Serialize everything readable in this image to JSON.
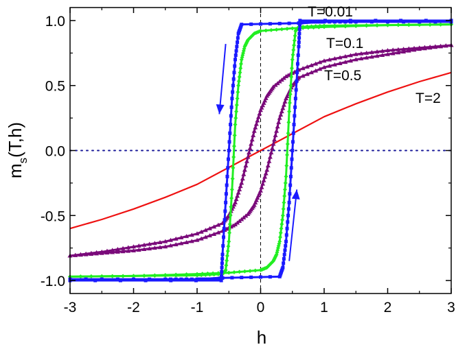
{
  "chart_data": {
    "type": "line",
    "xlabel": "h",
    "ylabel_main": "m",
    "ylabel_sub": "s",
    "ylabel_rest": "(T,h)",
    "xlim": [
      -3,
      3
    ],
    "ylim": [
      -1.1,
      1.1
    ],
    "x_ticks": [
      -3,
      -2,
      -1,
      0,
      1,
      2,
      3
    ],
    "x_tick_labels": [
      "-3",
      "-2",
      "-1",
      "0",
      "1",
      "2",
      "3"
    ],
    "y_ticks": [
      -1.0,
      -0.5,
      0.0,
      0.5,
      1.0
    ],
    "y_tick_labels": [
      "-1.0",
      "-0.5",
      "0.0",
      "0.5",
      "1.0"
    ],
    "reference_lines": {
      "vertical_x": 0,
      "horizontal_y": 0
    },
    "series": [
      {
        "label": "T=0.01",
        "color": "#1a1aff",
        "marker": "square",
        "branch_down": {
          "x": [
            3,
            1.5,
            1.0,
            0.8,
            0.65,
            0.6,
            -0.3,
            -0.35,
            -0.4,
            -0.45,
            -0.5,
            -0.55,
            -0.6,
            -0.62,
            -3
          ],
          "y": [
            0.99,
            0.99,
            0.99,
            0.99,
            0.985,
            0.98,
            0.97,
            0.9,
            0.7,
            0.4,
            0.0,
            -0.4,
            -0.8,
            -1.0,
            -1.0
          ]
        },
        "branch_up": {
          "x": [
            -3,
            -1.5,
            -1.0,
            -0.8,
            -0.65,
            -0.6,
            0.3,
            0.35,
            0.4,
            0.45,
            0.5,
            0.55,
            0.6,
            0.62,
            3
          ],
          "y": [
            -0.99,
            -0.99,
            -0.99,
            -0.99,
            -0.985,
            -0.98,
            -0.97,
            -0.9,
            -0.7,
            -0.4,
            0.0,
            0.4,
            0.8,
            1.0,
            1.0
          ]
        }
      },
      {
        "label": "T=0.1",
        "color": "#22ee22",
        "marker": "diamond",
        "branch_down": {
          "x": [
            3,
            2,
            1,
            0.5,
            0.0,
            -0.1,
            -0.2,
            -0.25,
            -0.3,
            -0.35,
            -0.4,
            -0.45,
            -0.5,
            -0.55,
            -0.6,
            -1,
            -2,
            -3
          ],
          "y": [
            0.97,
            0.965,
            0.95,
            0.94,
            0.92,
            0.9,
            0.85,
            0.8,
            0.7,
            0.5,
            0.2,
            -0.3,
            -0.7,
            -0.92,
            -0.95,
            -0.96,
            -0.965,
            -0.97
          ]
        },
        "branch_up": {
          "x": [
            -3,
            -2,
            -1,
            -0.5,
            0.0,
            0.1,
            0.2,
            0.25,
            0.3,
            0.35,
            0.4,
            0.45,
            0.5,
            0.55,
            0.6,
            1,
            2,
            3
          ],
          "y": [
            -0.97,
            -0.965,
            -0.95,
            -0.94,
            -0.92,
            -0.9,
            -0.85,
            -0.8,
            -0.7,
            -0.5,
            -0.2,
            0.3,
            0.7,
            0.92,
            0.95,
            0.96,
            0.965,
            0.97
          ]
        }
      },
      {
        "label": "T=0.5",
        "color": "#7a0a7a",
        "marker": "triangle",
        "branch_down": {
          "x": [
            3,
            2.5,
            2,
            1.5,
            1,
            0.6,
            0.4,
            0.2,
            0.1,
            0.0,
            -0.1,
            -0.2,
            -0.3,
            -0.4,
            -0.5,
            -0.6,
            -1,
            -1.5,
            -2,
            -2.5,
            -3
          ],
          "y": [
            0.81,
            0.79,
            0.77,
            0.74,
            0.69,
            0.62,
            0.57,
            0.49,
            0.42,
            0.31,
            0.15,
            -0.05,
            -0.25,
            -0.4,
            -0.5,
            -0.56,
            -0.64,
            -0.7,
            -0.74,
            -0.78,
            -0.81
          ]
        },
        "branch_up": {
          "x": [
            -3,
            -2.5,
            -2,
            -1.5,
            -1,
            -0.6,
            -0.4,
            -0.2,
            -0.1,
            0.0,
            0.1,
            0.2,
            0.3,
            0.4,
            0.5,
            0.6,
            1,
            1.5,
            2,
            2.5,
            3
          ],
          "y": [
            -0.81,
            -0.79,
            -0.77,
            -0.74,
            -0.69,
            -0.62,
            -0.57,
            -0.49,
            -0.42,
            -0.31,
            -0.15,
            0.05,
            0.25,
            0.4,
            0.5,
            0.56,
            0.64,
            0.7,
            0.74,
            0.78,
            0.81
          ]
        }
      },
      {
        "label": "T=2",
        "color": "#ee1111",
        "marker": "none",
        "x": [
          -3,
          -2.5,
          -2,
          -1.5,
          -1,
          -0.5,
          0,
          0.5,
          1,
          1.5,
          2,
          2.5,
          3
        ],
        "y": [
          -0.6,
          -0.53,
          -0.45,
          -0.36,
          -0.26,
          -0.13,
          0.0,
          0.13,
          0.26,
          0.36,
          0.45,
          0.53,
          0.6
        ]
      }
    ],
    "annotations": [
      {
        "type": "arrow",
        "color": "#1a1aff",
        "direction": "down",
        "from": [
          -0.55,
          0.82
        ],
        "to": [
          -0.65,
          0.28
        ]
      },
      {
        "type": "arrow",
        "color": "#1a1aff",
        "direction": "up",
        "from": [
          0.45,
          -0.85
        ],
        "to": [
          0.57,
          -0.3
        ]
      }
    ]
  }
}
